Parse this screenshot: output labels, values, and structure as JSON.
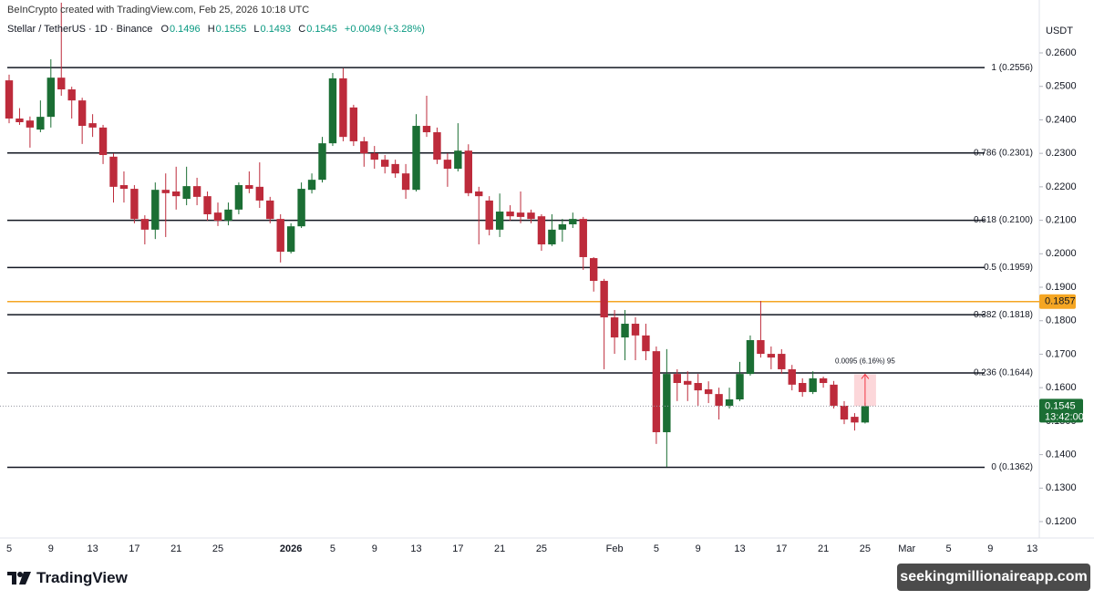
{
  "header": {
    "credit": "BeInCrypto created with TradingView.com, Feb 25, 2026 10:18 UTC",
    "ohlc_labels": [
      "O",
      "H",
      "L",
      "C"
    ],
    "change": "+0.0049 (+3.28%)",
    "currency": "USDT"
  },
  "footer": {
    "brand": "TradingView",
    "watermark": "seekingmillionaireapp.com"
  },
  "chart_data": {
    "type": "candlestick",
    "title": "Stellar / TetherUS · 1D · Binance",
    "up_color": "#1b6e34",
    "down_color": "#bd2b3b",
    "grid": false,
    "categories": [
      "5",
      null,
      null,
      null,
      "9",
      null,
      null,
      null,
      "13",
      null,
      null,
      null,
      "17",
      null,
      null,
      null,
      "21",
      null,
      null,
      null,
      "25",
      null,
      null,
      null,
      null,
      null,
      null,
      "2026",
      null,
      null,
      null,
      "5",
      null,
      null,
      null,
      "9",
      null,
      null,
      null,
      "13",
      null,
      null,
      null,
      "17",
      null,
      null,
      null,
      "21",
      null,
      null,
      null,
      "25",
      null,
      null,
      null,
      null,
      null,
      null,
      "Feb",
      null,
      null,
      null,
      "5",
      null,
      null,
      null,
      "9",
      null,
      null,
      null,
      "13",
      null,
      null,
      null,
      "17",
      null,
      null,
      null,
      "21",
      null,
      null,
      null,
      "25",
      null,
      null,
      null,
      "Mar",
      null,
      null,
      null,
      "5",
      null,
      null,
      null,
      "9",
      null,
      null,
      null,
      "13"
    ],
    "open": [
      0.2518,
      0.2404,
      0.2398,
      0.2371,
      0.2409,
      0.2526,
      0.2491,
      0.2458,
      0.239,
      0.2377,
      0.229,
      0.2205,
      0.2194,
      0.2104,
      0.2072,
      0.2191,
      0.2186,
      0.2164,
      0.2202,
      0.2172,
      0.2123,
      0.2099,
      0.2132,
      0.2205,
      0.22,
      0.2159,
      0.2104,
      0.2006,
      0.2082,
      0.2191,
      0.2221,
      0.233,
      0.2524,
      0.2437,
      0.2336,
      0.23,
      0.2281,
      0.2268,
      0.224,
      0.2191,
      0.2382,
      0.2363,
      0.2281,
      0.2254,
      0.2308,
      0.2186,
      0.2159,
      0.2072,
      0.2126,
      0.2123,
      0.2123,
      0.2112,
      0.2028,
      0.2072,
      0.2088,
      0.2104,
      0.1987,
      0.1919,
      0.181,
      0.175,
      0.1791,
      0.1756,
      0.1709,
      0.1467,
      0.1641,
      0.162,
      0.1614,
      0.1595,
      0.1581,
      0.1546,
      0.1565,
      0.1641,
      0.1742,
      0.1701,
      0.1701,
      0.1655,
      0.1614,
      0.1587,
      0.1628,
      0.1609,
      0.1546,
      0.1513,
      0.1496,
      null,
      null,
      null,
      null,
      null,
      null,
      null,
      null,
      null,
      null,
      null,
      null,
      null,
      null,
      null,
      null
    ],
    "high": [
      0.2535,
      0.2435,
      0.241,
      0.2458,
      0.2581,
      0.275,
      0.2499,
      0.2466,
      0.2417,
      0.2385,
      0.23,
      0.2246,
      0.2205,
      0.2115,
      0.2213,
      0.224,
      0.226,
      0.226,
      0.2227,
      0.2186,
      0.2153,
      0.2153,
      0.2213,
      0.2246,
      0.2273,
      0.217,
      0.2118,
      0.2091,
      0.2213,
      0.224,
      0.2349,
      0.254,
      0.2554,
      0.2445,
      0.2349,
      0.2322,
      0.2295,
      0.2281,
      0.2268,
      0.2417,
      0.2472,
      0.2377,
      0.23,
      0.239,
      0.2327,
      0.22,
      0.2172,
      0.218,
      0.2145,
      0.2186,
      0.2132,
      0.2118,
      0.2118,
      0.2104,
      0.2123,
      0.211,
      0.199,
      0.1925,
      0.1832,
      0.1832,
      0.181,
      0.1791,
      0.1723,
      0.1715,
      0.1655,
      0.1649,
      0.1641,
      0.1619,
      0.16,
      0.16,
      0.1677,
      0.1756,
      0.1859,
      0.1723,
      0.1715,
      0.1668,
      0.1628,
      0.1649,
      0.1633,
      0.162,
      0.156,
      0.1524,
      0.1555,
      null,
      null,
      null,
      null,
      null,
      null,
      null,
      null,
      null,
      null,
      null,
      null,
      null,
      null,
      null,
      null
    ],
    "low": [
      0.239,
      0.2385,
      0.2317,
      0.2363,
      0.2377,
      0.2472,
      0.2404,
      0.2328,
      0.2349,
      0.2268,
      0.2153,
      0.2153,
      0.2091,
      0.2028,
      0.2044,
      0.205,
      0.2132,
      0.2145,
      0.2145,
      0.2099,
      0.2083,
      0.2085,
      0.2118,
      0.2181,
      0.2137,
      0.2091,
      0.1974,
      0.2001,
      0.2077,
      0.218,
      0.2213,
      0.2322,
      0.2336,
      0.2322,
      0.226,
      0.2254,
      0.224,
      0.2227,
      0.2164,
      0.2186,
      0.2349,
      0.2268,
      0.22,
      0.2246,
      0.2172,
      0.2028,
      0.2055,
      0.205,
      0.2099,
      0.2091,
      0.2091,
      0.2009,
      0.2023,
      0.2036,
      0.2077,
      0.1952,
      0.1887,
      0.1655,
      0.1701,
      0.1682,
      0.1682,
      0.1682,
      0.1432,
      0.1363,
      0.156,
      0.156,
      0.1546,
      0.1554,
      0.1505,
      0.1538,
      0.156,
      0.1636,
      0.169,
      0.1655,
      0.1641,
      0.1592,
      0.1573,
      0.1581,
      0.16,
      0.1538,
      0.1491,
      0.1472,
      0.1493,
      null,
      null,
      null,
      null,
      null,
      null,
      null,
      null,
      null,
      null,
      null,
      null,
      null,
      null,
      null,
      null
    ],
    "close": [
      0.2404,
      0.2393,
      0.2377,
      0.2409,
      0.2526,
      0.2491,
      0.2458,
      0.2382,
      0.2377,
      0.2295,
      0.22,
      0.2194,
      0.2104,
      0.2072,
      0.2191,
      0.2181,
      0.2172,
      0.2202,
      0.217,
      0.2118,
      0.2099,
      0.2132,
      0.2205,
      0.2194,
      0.2159,
      0.2104,
      0.2006,
      0.2082,
      0.2194,
      0.2221,
      0.233,
      0.2524,
      0.2349,
      0.2336,
      0.23,
      0.2281,
      0.226,
      0.224,
      0.2191,
      0.2382,
      0.2363,
      0.2281,
      0.2254,
      0.2308,
      0.2181,
      0.2172,
      0.2072,
      0.2126,
      0.2112,
      0.211,
      0.2104,
      0.2028,
      0.2072,
      0.2088,
      0.2104,
      0.199,
      0.1919,
      0.181,
      0.175,
      0.1791,
      0.1756,
      0.1709,
      0.1467,
      0.1641,
      0.1614,
      0.1609,
      0.1592,
      0.1581,
      0.1546,
      0.1565,
      0.1641,
      0.1742,
      0.1701,
      0.169,
      0.1655,
      0.1609,
      0.1587,
      0.1628,
      0.1614,
      0.1546,
      0.1505,
      0.1496,
      0.1545,
      null,
      null,
      null,
      null,
      null,
      null,
      null,
      null,
      null,
      null,
      null,
      null,
      null,
      null,
      null,
      null
    ],
    "ylim": [
      0.1151,
      0.2758
    ],
    "yticks": [
      {
        "value": 0.26,
        "label": "0.2600"
      },
      {
        "value": 0.25,
        "label": "0.2500"
      },
      {
        "value": 0.24,
        "label": "0.2400"
      },
      {
        "value": 0.23,
        "label": "0.2300"
      },
      {
        "value": 0.22,
        "label": "0.2200"
      },
      {
        "value": 0.21,
        "label": "0.2100"
      },
      {
        "value": 0.2,
        "label": "0.2000"
      },
      {
        "value": 0.19,
        "label": "0.1900"
      },
      {
        "value": 0.18,
        "label": "0.1800"
      },
      {
        "value": 0.17,
        "label": "0.1700"
      },
      {
        "value": 0.16,
        "label": "0.1600"
      },
      {
        "value": 0.15,
        "label": "0.1500"
      },
      {
        "value": 0.14,
        "label": "0.1400"
      },
      {
        "value": 0.13,
        "label": "0.1300"
      },
      {
        "value": 0.12,
        "label": "0.1200"
      }
    ],
    "levels": [
      {
        "value": 0.2556,
        "label": "1 (0.2556)"
      },
      {
        "value": 0.2301,
        "label": "0.786 (0.2301)"
      },
      {
        "value": 0.21,
        "label": "0.618 (0.2100)"
      },
      {
        "value": 0.1959,
        "label": "0.5 (0.1959)"
      },
      {
        "value": 0.1818,
        "label": "0.382 (0.1818)"
      },
      {
        "value": 0.1644,
        "label": "0.236 (0.1644)"
      },
      {
        "value": 0.1362,
        "label": "0 (0.1362)"
      }
    ],
    "alert_line": {
      "value": 0.1857,
      "color": "#f5a623"
    },
    "countdown": "13:42:00",
    "measure": {
      "label": "0.0095 (6.16%) 95",
      "from": 0.1545,
      "to": 0.164
    }
  }
}
